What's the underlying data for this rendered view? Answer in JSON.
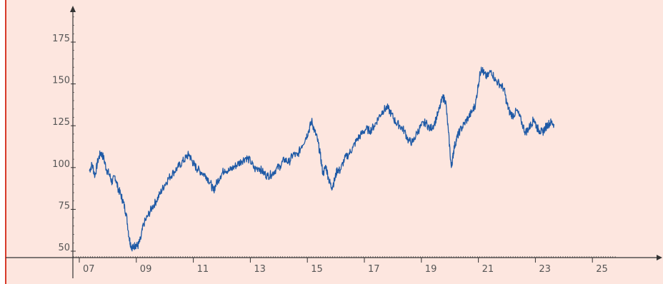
{
  "colors": {
    "background": "#fde6df",
    "line": "#1f5aa6",
    "axis": "#333333",
    "left_border": "#d73a2a",
    "tick_text": "#555555"
  },
  "chart_data": {
    "type": "line",
    "title": "",
    "xlabel": "",
    "ylabel": "",
    "grid": false,
    "legend": "none",
    "xlim": [
      2006.8,
      2026.2
    ],
    "ylim": [
      47,
      196
    ],
    "x_ticks": [
      {
        "value": 2007,
        "label": "07"
      },
      {
        "value": 2009,
        "label": "09"
      },
      {
        "value": 2011,
        "label": "11"
      },
      {
        "value": 2013,
        "label": "13"
      },
      {
        "value": 2015,
        "label": "15"
      },
      {
        "value": 2017,
        "label": "17"
      },
      {
        "value": 2019,
        "label": "19"
      },
      {
        "value": 2021,
        "label": "21"
      },
      {
        "value": 2023,
        "label": "23"
      },
      {
        "value": 2025,
        "label": "25"
      }
    ],
    "y_ticks": [
      {
        "value": 50,
        "label": "50"
      },
      {
        "value": 75,
        "label": "75"
      },
      {
        "value": 100,
        "label": "100"
      },
      {
        "value": 125,
        "label": "125"
      },
      {
        "value": 150,
        "label": "150"
      },
      {
        "value": 175,
        "label": "175"
      }
    ],
    "series": [
      {
        "color": "#1f5aa6",
        "x": [
          2007.35,
          2007.45,
          2007.55,
          2007.65,
          2007.75,
          2007.85,
          2007.95,
          2008.05,
          2008.15,
          2008.25,
          2008.35,
          2008.45,
          2008.55,
          2008.65,
          2008.75,
          2008.82,
          2008.9,
          2008.97,
          2009.05,
          2009.15,
          2009.25,
          2009.4,
          2009.55,
          2009.7,
          2009.85,
          2010.0,
          2010.15,
          2010.3,
          2010.45,
          2010.6,
          2010.75,
          2010.85,
          2010.95,
          2011.05,
          2011.15,
          2011.3,
          2011.45,
          2011.6,
          2011.7,
          2011.8,
          2011.95,
          2012.1,
          2012.25,
          2012.4,
          2012.55,
          2012.7,
          2012.85,
          2013.0,
          2013.15,
          2013.3,
          2013.45,
          2013.6,
          2013.75,
          2013.9,
          2014.05,
          2014.2,
          2014.35,
          2014.5,
          2014.65,
          2014.8,
          2014.95,
          2015.05,
          2015.15,
          2015.25,
          2015.35,
          2015.45,
          2015.55,
          2015.65,
          2015.75,
          2015.85,
          2015.95,
          2016.05,
          2016.15,
          2016.3,
          2016.45,
          2016.6,
          2016.75,
          2016.9,
          2017.05,
          2017.2,
          2017.35,
          2017.5,
          2017.65,
          2017.8,
          2017.95,
          2018.1,
          2018.25,
          2018.4,
          2018.55,
          2018.7,
          2018.85,
          2019.0,
          2019.15,
          2019.3,
          2019.45,
          2019.6,
          2019.75,
          2019.85,
          2019.95,
          2020.05,
          2020.1,
          2020.15,
          2020.25,
          2020.35,
          2020.5,
          2020.65,
          2020.8,
          2020.9,
          2021.0,
          2021.1,
          2021.2,
          2021.3,
          2021.45,
          2021.6,
          2021.75,
          2021.9,
          2022.0,
          2022.1,
          2022.2,
          2022.35,
          2022.5,
          2022.65,
          2022.75,
          2022.85,
          2022.95,
          2023.05,
          2023.15,
          2023.25,
          2023.35,
          2023.45,
          2023.55,
          2023.65
        ],
        "y": [
          98,
          102,
          95,
          104,
          109,
          106,
          99,
          96,
          91,
          95,
          88,
          84,
          79,
          72,
          58,
          53,
          52,
          54,
          53,
          57,
          66,
          71,
          76,
          80,
          85,
          90,
          94,
          97,
          100,
          103,
          106,
          108,
          104,
          101,
          99,
          97,
          95,
          91,
          86,
          90,
          95,
          99,
          98,
          100,
          102,
          104,
          106,
          104,
          99,
          100,
          97,
          95,
          96,
          99,
          101,
          105,
          103,
          108,
          107,
          113,
          118,
          122,
          128,
          122,
          117,
          108,
          96,
          101,
          93,
          88,
          92,
          99,
          98,
          105,
          108,
          112,
          117,
          120,
          123,
          122,
          125,
          130,
          134,
          136,
          132,
          127,
          125,
          122,
          116,
          115,
          121,
          125,
          127,
          123,
          126,
          133,
          142,
          140,
          121,
          100,
          106,
          112,
          118,
          122,
          126,
          130,
          134,
          138,
          150,
          160,
          156,
          154,
          158,
          152,
          150,
          147,
          138,
          133,
          131,
          134,
          128,
          121,
          123,
          126,
          129,
          124,
          122,
          121,
          124,
          126,
          127,
          126
        ]
      }
    ]
  }
}
